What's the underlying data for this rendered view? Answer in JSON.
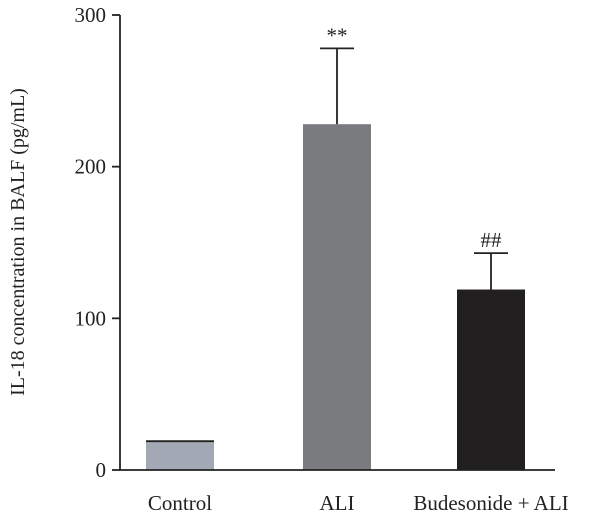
{
  "chart_data": {
    "type": "bar",
    "categories": [
      "Control",
      "ALI",
      "Budesonide + ALI"
    ],
    "values": [
      19,
      228,
      119
    ],
    "errors": [
      0.5,
      50,
      24
    ],
    "annotations": [
      "",
      "**",
      "##"
    ],
    "colors": [
      "#a3a9b4",
      "#7a7b7f",
      "#221f20"
    ],
    "ylabel": "IL-18 concentration in BALF (pg/mL)",
    "xlabel": "",
    "ylim": [
      0,
      300
    ],
    "yticks": [
      0,
      100,
      200,
      300
    ],
    "grid": false
  }
}
